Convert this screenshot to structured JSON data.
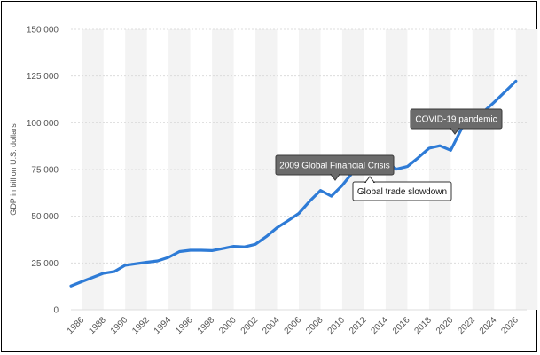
{
  "chart_data": {
    "type": "line",
    "title": "",
    "xlabel": "",
    "ylabel": "GDP in billion U.S. dollars",
    "ylim": [
      0,
      150000
    ],
    "yticks": [
      0,
      25000,
      50000,
      75000,
      100000,
      125000,
      150000
    ],
    "ytick_labels": [
      "0",
      "25 000",
      "50 000",
      "75 000",
      "100 000",
      "125 000",
      "150 000"
    ],
    "xlim": [
      1985,
      2027
    ],
    "xticks": [
      1986,
      1988,
      1990,
      1992,
      1994,
      1996,
      1998,
      2000,
      2002,
      2004,
      2006,
      2008,
      2010,
      2012,
      2014,
      2016,
      2018,
      2020,
      2022,
      2024,
      2026
    ],
    "xtick_labels": [
      "1986",
      "1988",
      "1990",
      "1992",
      "1994",
      "1996",
      "1998",
      "2000",
      "2002",
      "2004",
      "2006",
      "2008",
      "2010",
      "2012",
      "2014",
      "2016",
      "2018",
      "2020",
      "2022",
      "2024",
      "2026"
    ],
    "grid": true,
    "series_color": "#2e7bd6",
    "x": [
      1985,
      1986,
      1987,
      1988,
      1989,
      1990,
      1991,
      1992,
      1993,
      1994,
      1995,
      1996,
      1997,
      1998,
      1999,
      2000,
      2001,
      2002,
      2003,
      2004,
      2005,
      2006,
      2007,
      2008,
      2009,
      2010,
      2011,
      2012,
      2013,
      2014,
      2015,
      2016,
      2017,
      2018,
      2019,
      2020,
      2021,
      2022,
      2023,
      2024,
      2025,
      2026
    ],
    "series": [
      {
        "values": [
          12700,
          15000,
          17300,
          19500,
          20400,
          23800,
          24600,
          25400,
          26100,
          28000,
          31100,
          31800,
          31800,
          31600,
          32700,
          33900,
          33600,
          35000,
          39100,
          43900,
          47600,
          51500,
          58000,
          63800,
          60700,
          66500,
          73700,
          75200,
          77300,
          79500,
          75200,
          76600,
          81300,
          86400,
          87700,
          85300,
          96900,
          101300,
          105700,
          111000,
          116600,
          122300
        ]
      }
    ],
    "annotations": [
      {
        "text": "2009 Global Financial Crisis",
        "x": 2009,
        "style": "dark"
      },
      {
        "text": "Global trade slowdown",
        "x": 2015,
        "style": "light"
      },
      {
        "text": "COVID-19 pandemic",
        "x": 2020,
        "style": "dark"
      }
    ]
  }
}
